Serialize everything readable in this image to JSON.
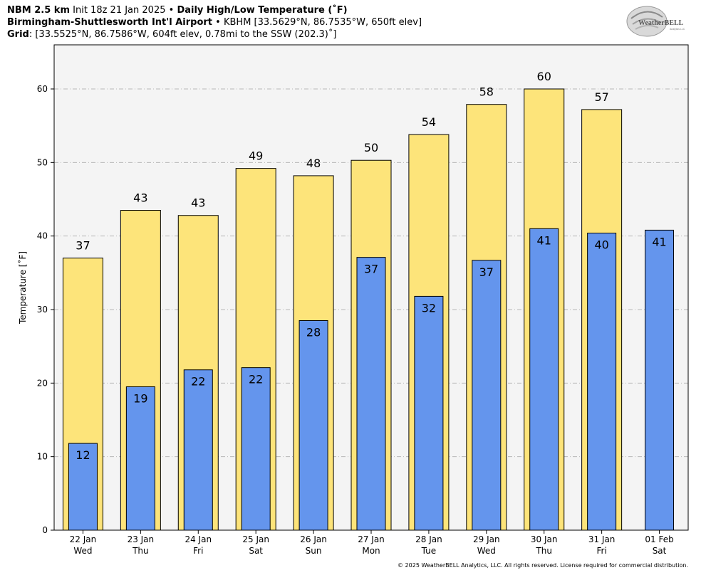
{
  "header": {
    "line1_model": "NBM 2.5 km",
    "line1_init": "Init 18z 21 Jan 2025",
    "line1_sep": "•",
    "line1_product": "Daily High/Low Temperature (˚F)",
    "line2_station": "Birmingham-Shuttlesworth Int'l Airport",
    "line2_sep": "•",
    "line2_details": "KBHM [33.5629°N, 86.7535°W, 650ft elev]",
    "line3_label": "Grid",
    "line3_details": ": [33.5525°N, 86.7586°W, 604ft elev, 0.78mi to the SSW (202.3)˚]"
  },
  "logo": {
    "text_main": "WeatherBELL",
    "text_sub": "Analytics LLC"
  },
  "footer": {
    "copyright": "© 2025 WeatherBELL Analytics, LLC. All rights reserved. License required for commercial distribution."
  },
  "colors": {
    "high_fill": "#fde47a",
    "low_fill": "#6495ed",
    "plot_bg": "#f4f4f4",
    "grid": "#b8b8b8"
  },
  "chart_data": {
    "type": "bar",
    "ylabel": "Temperature [˚F]",
    "ylim": [
      0,
      66
    ],
    "yticks": [
      0,
      10,
      20,
      30,
      40,
      50,
      60
    ],
    "grid": "horizontal dash-dot",
    "categories": [
      {
        "date": "22 Jan",
        "day": "Wed"
      },
      {
        "date": "23 Jan",
        "day": "Thu"
      },
      {
        "date": "24 Jan",
        "day": "Fri"
      },
      {
        "date": "25 Jan",
        "day": "Sat"
      },
      {
        "date": "26 Jan",
        "day": "Sun"
      },
      {
        "date": "27 Jan",
        "day": "Mon"
      },
      {
        "date": "28 Jan",
        "day": "Tue"
      },
      {
        "date": "29 Jan",
        "day": "Wed"
      },
      {
        "date": "30 Jan",
        "day": "Thu"
      },
      {
        "date": "31 Jan",
        "day": "Fri"
      },
      {
        "date": "01 Feb",
        "day": "Sat"
      }
    ],
    "series": [
      {
        "key": "high",
        "values": [
          37,
          43.5,
          42.8,
          49.2,
          48.2,
          50.3,
          53.8,
          57.9,
          60.0,
          57.2,
          null
        ],
        "labels": [
          "37",
          "43",
          "43",
          "49",
          "48",
          "50",
          "54",
          "58",
          "60",
          "57",
          null
        ]
      },
      {
        "key": "low",
        "values": [
          11.8,
          19.5,
          21.8,
          22.1,
          28.5,
          37.1,
          31.8,
          36.7,
          41.0,
          40.4,
          40.8
        ],
        "labels": [
          "12",
          "19",
          "22",
          "22",
          "28",
          "37",
          "32",
          "37",
          "41",
          "40",
          "41"
        ]
      }
    ]
  }
}
